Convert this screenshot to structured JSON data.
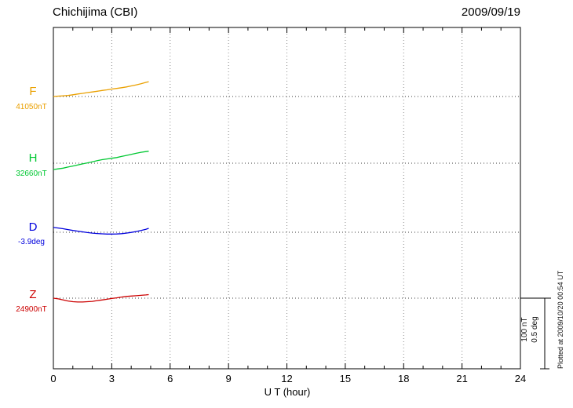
{
  "header": {
    "title": "Chichijima (CBI)",
    "date": "2009/09/19"
  },
  "chart_data": {
    "type": "line",
    "title": "Chichijima (CBI)",
    "date": "2009/09/19",
    "xlabel": "U T (hour)",
    "xlim": [
      0,
      24
    ],
    "xticks": [
      0,
      3,
      6,
      9,
      12,
      15,
      18,
      21,
      24
    ],
    "grid": "dotted vertical lines every 3 hours; dotted horizontal baseline per component",
    "scale_bar": {
      "nT": "100 nT",
      "deg": "0.5 deg"
    },
    "plotted_note": "Plotted at 2009/10/20 00:54 UT",
    "series": [
      {
        "name": "F",
        "baseline_label": "41050nT",
        "baseline_value": 41050,
        "unit": "nT",
        "color": "#eaa000",
        "x_hours": [
          0,
          0.25,
          0.5,
          0.75,
          1,
          1.25,
          1.5,
          1.75,
          2,
          2.25,
          2.5,
          2.75,
          3,
          3.25,
          3.5,
          3.75,
          4,
          4.25,
          4.5,
          4.75,
          4.9
        ],
        "offsets": [
          0,
          0.5,
          1,
          1.5,
          2.5,
          3.5,
          4.5,
          5.5,
          6.5,
          7.5,
          8.5,
          9.5,
          10.5,
          11.5,
          12.5,
          13.5,
          15,
          16.5,
          18,
          20,
          21
        ]
      },
      {
        "name": "H",
        "baseline_label": "32660nT",
        "baseline_value": 32660,
        "unit": "nT",
        "color": "#00c832",
        "x_hours": [
          0,
          0.25,
          0.5,
          0.75,
          1,
          1.25,
          1.5,
          1.75,
          2,
          2.25,
          2.5,
          2.75,
          3,
          3.25,
          3.5,
          3.75,
          4,
          4.25,
          4.5,
          4.75,
          4.9
        ],
        "offsets": [
          -9,
          -8,
          -7,
          -5.5,
          -4,
          -2.5,
          -1,
          0.5,
          2,
          3.5,
          5,
          6,
          7,
          8,
          9.5,
          11,
          12.5,
          14,
          15.5,
          16.5,
          17
        ]
      },
      {
        "name": "D",
        "baseline_label": "-3.9deg",
        "baseline_value": -3.9,
        "unit": "deg",
        "color": "#0000dd",
        "x_hours": [
          0,
          0.25,
          0.5,
          0.75,
          1,
          1.25,
          1.5,
          1.75,
          2,
          2.25,
          2.5,
          2.75,
          3,
          3.25,
          3.5,
          3.75,
          4,
          4.25,
          4.5,
          4.75,
          4.9
        ],
        "offsets": [
          0.034,
          0.03,
          0.025,
          0.019,
          0.013,
          0.008,
          0.003,
          -0.002,
          -0.006,
          -0.009,
          -0.011,
          -0.013,
          -0.013,
          -0.012,
          -0.01,
          -0.006,
          -0.001,
          0.005,
          0.012,
          0.021,
          0.028
        ]
      },
      {
        "name": "Z",
        "baseline_label": "24900nT",
        "baseline_value": 24900,
        "unit": "nT",
        "color": "#cc0000",
        "x_hours": [
          0,
          0.25,
          0.5,
          0.75,
          1,
          1.25,
          1.5,
          1.75,
          2,
          2.25,
          2.5,
          2.75,
          3,
          3.25,
          3.5,
          3.75,
          4,
          4.25,
          4.5,
          4.75,
          4.9
        ],
        "offsets": [
          0,
          -1,
          -2.5,
          -4,
          -5,
          -5.5,
          -5.5,
          -5,
          -4.5,
          -3.5,
          -2.5,
          -1.5,
          -0.5,
          0.5,
          1.5,
          2.5,
          3,
          3.5,
          4,
          4.5,
          5
        ]
      }
    ]
  }
}
